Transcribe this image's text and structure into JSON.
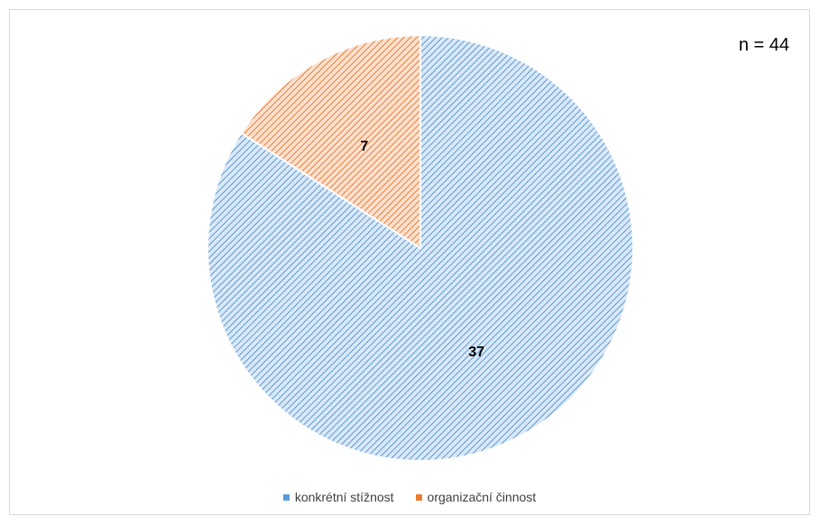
{
  "annotation": "n = 44",
  "colors": {
    "slice_blue": "#5b9bd5",
    "slice_blue_bg": "#dbe8f6",
    "slice_orange": "#ed7d31",
    "slice_orange_bg": "#fbe1d1"
  },
  "chart_data": {
    "type": "pie",
    "title": "",
    "categories": [
      "konkrétní stížnost",
      "organizační činnost"
    ],
    "values": [
      37,
      7
    ],
    "data_labels": [
      "37",
      "7"
    ],
    "legend": {
      "placement": "bottom",
      "entries": [
        "konkrétní stížnost",
        "organizační činnost"
      ]
    },
    "fill_pattern": "diagonal-hatch"
  }
}
